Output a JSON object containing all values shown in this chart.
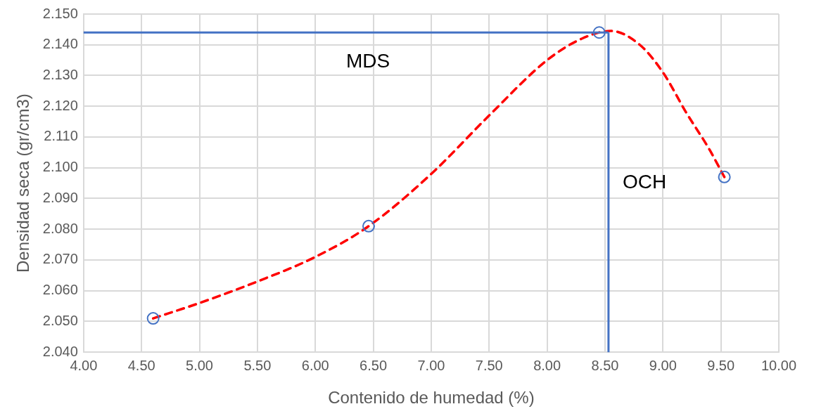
{
  "chart_data": {
    "type": "scatter",
    "xlabel": "Contenido de humedad (%)",
    "ylabel": "Densidad seca (gr/cm3)",
    "series": [
      {
        "type": "line",
        "color": "#ff0000",
        "line_style": "dashed",
        "marker": "none",
        "x": [
          4.6,
          5.0,
          5.5,
          6.0,
          6.46,
          7.0,
          7.5,
          8.0,
          8.3,
          8.55,
          8.8,
          9.0,
          9.2,
          9.4,
          9.53
        ],
        "values": [
          2.051,
          2.056,
          2.063,
          2.071,
          2.081,
          2.098,
          2.117,
          2.135,
          2.142,
          2.1445,
          2.14,
          2.131,
          2.118,
          2.106,
          2.097
        ]
      },
      {
        "type": "scatter",
        "color": "#4472c4",
        "marker": "circle",
        "x": [
          4.6,
          6.46,
          8.45,
          9.53
        ],
        "values": [
          2.051,
          2.081,
          2.144,
          2.097
        ]
      }
    ],
    "ref_lines": [
      {
        "axis": "y",
        "value": 2.144,
        "label": "MDS",
        "color": "#4472c4"
      },
      {
        "axis": "x",
        "value": 8.53,
        "label": "OCH",
        "color": "#4472c4"
      }
    ],
    "xlim": [
      4,
      10
    ],
    "xticks": [
      {
        "value": 4,
        "label": "4.00"
      },
      {
        "value": 4.5,
        "label": "4.50"
      },
      {
        "value": 5,
        "label": "5.00"
      },
      {
        "value": 5.5,
        "label": "5.50"
      },
      {
        "value": 6,
        "label": "6.00"
      },
      {
        "value": 6.5,
        "label": "6.50"
      },
      {
        "value": 7,
        "label": "7.00"
      },
      {
        "value": 7.5,
        "label": "7.50"
      },
      {
        "value": 8,
        "label": "8.00"
      },
      {
        "value": 8.5,
        "label": "8.50"
      },
      {
        "value": 9,
        "label": "9.00"
      },
      {
        "value": 9.5,
        "label": "9.50"
      },
      {
        "value": 10,
        "label": "10.00"
      }
    ],
    "ylim": [
      2.04,
      2.15
    ],
    "yticks": [
      {
        "value": 2.04,
        "label": "2.040"
      },
      {
        "value": 2.05,
        "label": "2.050"
      },
      {
        "value": 2.06,
        "label": "2.060"
      },
      {
        "value": 2.07,
        "label": "2.070"
      },
      {
        "value": 2.08,
        "label": "2.080"
      },
      {
        "value": 2.09,
        "label": "2.090"
      },
      {
        "value": 2.1,
        "label": "2.100"
      },
      {
        "value": 2.11,
        "label": "2.110"
      },
      {
        "value": 2.12,
        "label": "2.120"
      },
      {
        "value": 2.13,
        "label": "2.130"
      },
      {
        "value": 2.14,
        "label": "2.140"
      },
      {
        "value": 2.15,
        "label": "2.150"
      }
    ],
    "grid": true,
    "legend": false
  }
}
